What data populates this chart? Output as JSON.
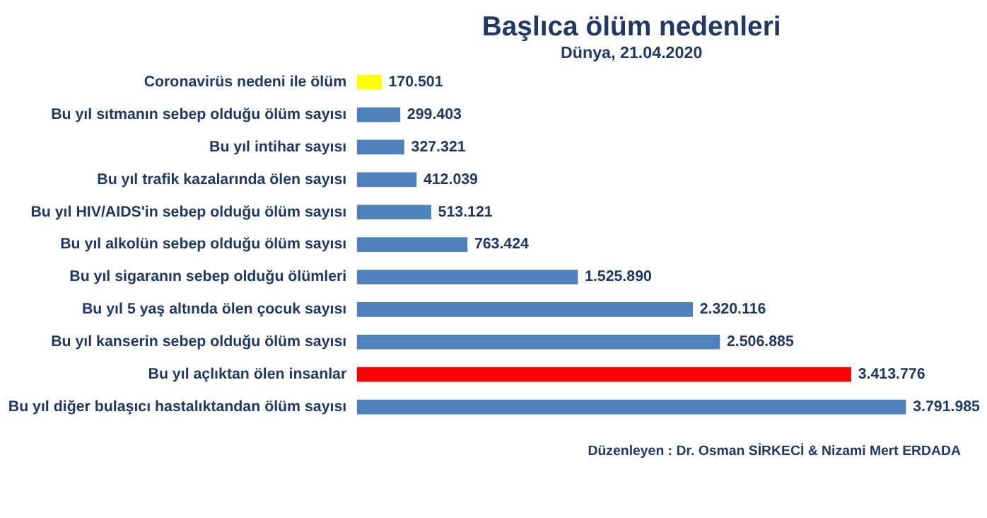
{
  "chart_data": {
    "type": "bar",
    "orientation": "horizontal",
    "title": "Başlıca ölüm nedenleri",
    "subtitle": "Dünya, 21.04.2020",
    "categories": [
      "Coronavirüs nedeni ile ölüm",
      "Bu yıl sıtmanın sebep olduğu ölüm sayısı",
      "Bu yıl intihar sayısı",
      "Bu yıl trafik kazalarında ölen sayısı",
      "Bu yıl HIV/AIDS'in sebep olduğu ölüm sayısı",
      "Bu yıl alkolün sebep olduğu ölüm sayısı",
      "Bu yıl sigaranın sebep olduğu ölümleri",
      "Bu yıl 5 yaş altında ölen çocuk sayısı",
      "Bu yıl kanserin sebep olduğu ölüm sayısı",
      "Bu yıl açlıktan ölen insanlar",
      "Bu yıl diğer bulaşıcı hastalıktandan ölüm sayısı"
    ],
    "values": [
      170501,
      299403,
      327321,
      412039,
      513121,
      763424,
      1525890,
      2320116,
      2506885,
      3413776,
      3791985
    ],
    "value_labels": [
      "170.501",
      "299.403",
      "327.321",
      "412.039",
      "513.121",
      "763.424",
      "1.525.890",
      "2.320.116",
      "2.506.885",
      "3.413.776",
      "3.791.985"
    ],
    "colors": [
      "#ffff00",
      "#4f81bd",
      "#4f81bd",
      "#4f81bd",
      "#4f81bd",
      "#4f81bd",
      "#4f81bd",
      "#4f81bd",
      "#4f81bd",
      "#ff0000",
      "#4f81bd"
    ],
    "annotations": [
      "Düzenleyen : Dr. Osman SİRKECİ & Nizami Mert ERDADA"
    ],
    "grid": false
  }
}
